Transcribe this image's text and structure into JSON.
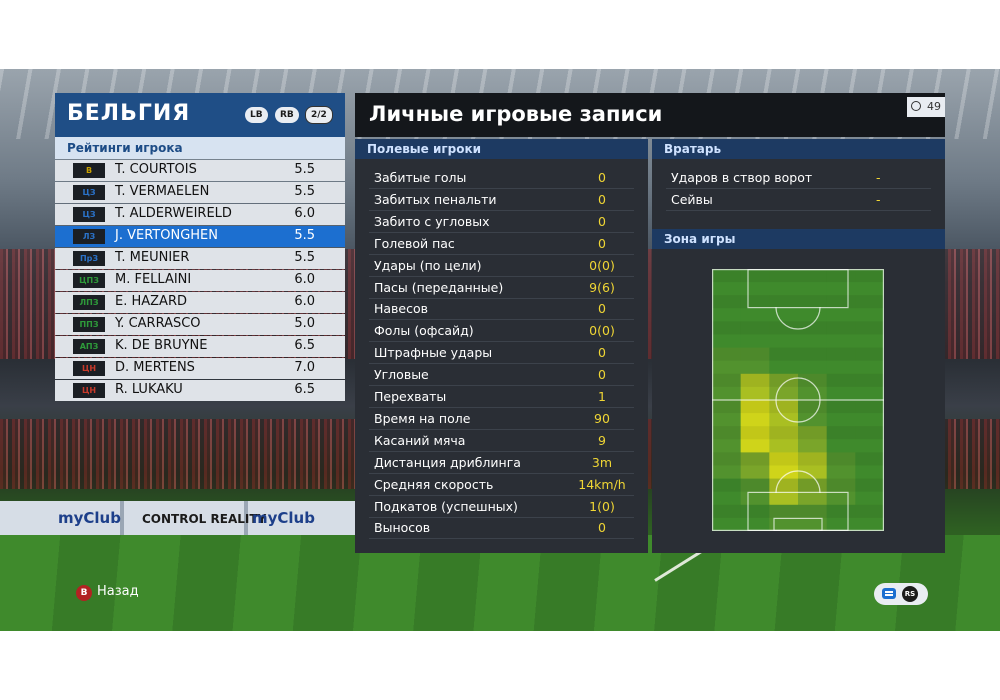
{
  "team": {
    "name": "БЕЛЬГИЯ",
    "lb_label": "LB",
    "rb_label": "RB",
    "page": "2/2",
    "ratings_title": "Рейтинги игрока",
    "players": [
      {
        "pos": "В",
        "pos_color": "#c8a000",
        "name": "T. COURTOIS",
        "rating": "5.5",
        "selected": false
      },
      {
        "pos": "ЦЗ",
        "pos_color": "#2a72c8",
        "name": "T. VERMAELEN",
        "rating": "5.5",
        "selected": false
      },
      {
        "pos": "ЦЗ",
        "pos_color": "#2a72c8",
        "name": "T. ALDERWEIRELD",
        "rating": "6.0",
        "selected": false
      },
      {
        "pos": "ЛЗ",
        "pos_color": "#2a72c8",
        "name": "J. VERTONGHEN",
        "rating": "5.5",
        "selected": true
      },
      {
        "pos": "ПрЗ",
        "pos_color": "#2a72c8",
        "name": "T. MEUNIER",
        "rating": "5.5",
        "selected": false
      },
      {
        "pos": "ЦПЗ",
        "pos_color": "#2e9a3a",
        "name": "M. FELLAINI",
        "rating": "6.0",
        "selected": false
      },
      {
        "pos": "ЛПЗ",
        "pos_color": "#2e9a3a",
        "name": "E. HAZARD",
        "rating": "6.0",
        "selected": false
      },
      {
        "pos": "ППЗ",
        "pos_color": "#2e9a3a",
        "name": "Y. CARRASCO",
        "rating": "5.0",
        "selected": false
      },
      {
        "pos": "АПЗ",
        "pos_color": "#2e9a3a",
        "name": "K. DE BRUYNE",
        "rating": "6.5",
        "selected": false
      },
      {
        "pos": "ЦН",
        "pos_color": "#c83a2a",
        "name": "D. MERTENS",
        "rating": "7.0",
        "selected": false
      },
      {
        "pos": "ЦН",
        "pos_color": "#c83a2a",
        "name": "R. LUKAKU",
        "rating": "6.5",
        "selected": false
      }
    ]
  },
  "records": {
    "title": "Личные игровые записи",
    "timer": "49",
    "field_header": "Полевые игроки",
    "field_stats": [
      {
        "label": "Забитые голы",
        "value": "0"
      },
      {
        "label": "Забитых пенальти",
        "value": "0"
      },
      {
        "label": "Забито с угловых",
        "value": "0"
      },
      {
        "label": "Голевой пас",
        "value": "0"
      },
      {
        "label": "Удары (по цели)",
        "value": "0(0)"
      },
      {
        "label": "Пасы (переданные)",
        "value": "9(6)"
      },
      {
        "label": "Навесов",
        "value": "0"
      },
      {
        "label": "Фолы (офсайд)",
        "value": "0(0)"
      },
      {
        "label": "Штрафные удары",
        "value": "0"
      },
      {
        "label": "Угловые",
        "value": "0"
      },
      {
        "label": "Перехваты",
        "value": "1"
      },
      {
        "label": "Время на поле",
        "value": "90"
      },
      {
        "label": "Касаний мяча",
        "value": "9"
      },
      {
        "label": "Дистанция дриблинга",
        "value": "3m"
      },
      {
        "label": "Средняя скорость",
        "value": "14km/h"
      },
      {
        "label": "Подкатов (успешных)",
        "value": "1(0)"
      },
      {
        "label": "Выносов",
        "value": "0"
      }
    ],
    "gk_header": "Вратарь",
    "gk_stats": [
      {
        "label": "Ударов в створ ворот",
        "value": "-"
      },
      {
        "label": "Сейвы",
        "value": "-"
      }
    ],
    "zone_header": "Зона игры",
    "heatmap": {
      "cols": 6,
      "rows": 10,
      "cells": [
        [
          0,
          0,
          0,
          0,
          0,
          0
        ],
        [
          0,
          0,
          0,
          0,
          0,
          0
        ],
        [
          0,
          0,
          0,
          0,
          0,
          0
        ],
        [
          1,
          1,
          0,
          0,
          0,
          0
        ],
        [
          1,
          3,
          2,
          1,
          0,
          0
        ],
        [
          1,
          4,
          3,
          1,
          0,
          0
        ],
        [
          1,
          4,
          3,
          2,
          0,
          0
        ],
        [
          1,
          2,
          4,
          3,
          1,
          0
        ],
        [
          0,
          1,
          3,
          2,
          1,
          0
        ],
        [
          0,
          0,
          1,
          1,
          0,
          0
        ]
      ],
      "colors": [
        "#3f8a2c",
        "#52922e",
        "#7aa52a",
        "#a9bf22",
        "#cfd41a"
      ]
    }
  },
  "controls": {
    "b_button": "B",
    "back": "Назад",
    "rs_button": "RS"
  },
  "stadium": {
    "ad_1": "myClub",
    "ad_2": "CONTROL REALITY",
    "ad_3": "myClub"
  }
}
